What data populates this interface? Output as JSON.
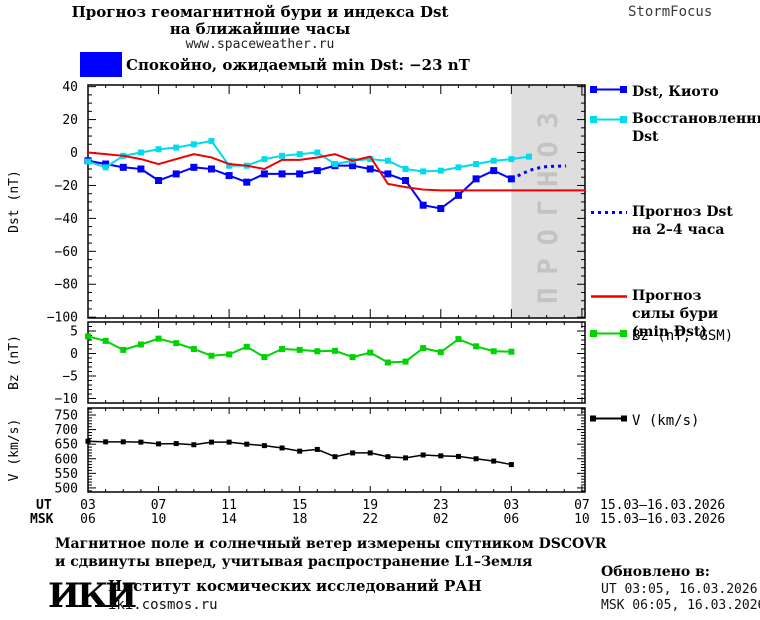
{
  "header": {
    "title_line1": "Прогноз геомагнитной бури и индекса Dst",
    "title_line2": "на ближайшие часы",
    "site": "www.spaceweather.ru",
    "brand": "StormFocus"
  },
  "status_banner": {
    "swatch_color": "#0000ff",
    "text": "Спокойно, ожидаемый min Dst: −23 nT"
  },
  "forecast_band_label": "ПРОГНОЗ",
  "legend": {
    "main": [
      {
        "lines": [
          "Dst, Киото"
        ]
      },
      {
        "lines": [
          "Восстановленный",
          "Dst"
        ]
      },
      {
        "lines": [
          "Прогноз Dst",
          "на 2–4 часа"
        ]
      },
      {
        "lines": [
          "Прогноз",
          "силы бури",
          "(min Dst)"
        ]
      }
    ],
    "bz": {
      "lines": [
        "Bz (nT, GSM)"
      ]
    },
    "v": {
      "lines": [
        "V (km/s)"
      ]
    }
  },
  "xaxis": {
    "ut_label": "UT",
    "msk_label": "MSK",
    "tick_hours": [
      0,
      4,
      8,
      12,
      16,
      20,
      24,
      28
    ],
    "ut_ticks": [
      "03",
      "07",
      "11",
      "15",
      "19",
      "23",
      "03",
      "07"
    ],
    "msk_ticks": [
      "06",
      "10",
      "14",
      "18",
      "22",
      "02",
      "06",
      "10"
    ],
    "minor_step_hours": 1,
    "x_max_hours": 28.2,
    "date_range": "15.03–16.03.2026"
  },
  "chart_data": [
    {
      "id": "dst",
      "type": "line",
      "ylabel": "Dst (nT)",
      "ylim": [
        -100.5,
        41
      ],
      "yticks": [
        40,
        20,
        0,
        -20,
        -40,
        -60,
        -80,
        -100
      ],
      "ytick_minor_step": 5,
      "grid": false,
      "forecast_band": {
        "x_start_hours": 24,
        "color": "#dedede",
        "text_color": "#c3c3c3"
      },
      "series": [
        {
          "name": "Dst, Киото",
          "color": "#0000ff",
          "marker": true,
          "marker_size": 7,
          "width": 2,
          "x": [
            0,
            1,
            2,
            3,
            4,
            5,
            6,
            7,
            8,
            9,
            10,
            11,
            12,
            13,
            14,
            15,
            16,
            17,
            18,
            19,
            20,
            21,
            22,
            23,
            24
          ],
          "values": [
            -5,
            -7,
            -9,
            -10,
            -17,
            -13,
            -9,
            -10,
            -14,
            -18,
            -13,
            -13,
            -13,
            -11,
            -8,
            -8,
            -10,
            -13,
            -17,
            -32,
            -34,
            -26,
            -16,
            -11,
            -16
          ]
        },
        {
          "name": "Восстановленный Dst",
          "color": "#00dcec",
          "marker": true,
          "marker_size": 6,
          "width": 2,
          "x": [
            0,
            1,
            2,
            3,
            4,
            5,
            6,
            7,
            8,
            9,
            10,
            11,
            12,
            13,
            14,
            15,
            16,
            17,
            18,
            19,
            20,
            21,
            22,
            23,
            24,
            25
          ],
          "values": [
            -5.5,
            -9,
            -2,
            0,
            2,
            3,
            5,
            7,
            -8,
            -8,
            -4,
            -2,
            -1,
            0,
            -7,
            -5,
            -4,
            -5,
            -10,
            -11.5,
            -11,
            -9,
            -7,
            -5,
            -4,
            -2.5
          ]
        },
        {
          "name": "Прогноз Dst на 2–4 часа",
          "color": "#0000ff",
          "dotted": true,
          "width": 3,
          "x": [
            24,
            24.4,
            24.8,
            25.2,
            25.6,
            26,
            26.5,
            27.1
          ],
          "values": [
            -16,
            -14,
            -12,
            -10.3,
            -9.2,
            -8.6,
            -8.3,
            -8.2
          ]
        },
        {
          "name": "Прогноз силы бури (min Dst)",
          "color": "#ee0000",
          "width": 2,
          "x": [
            0,
            1,
            2,
            3,
            4,
            5,
            6,
            7,
            8,
            9,
            10,
            11,
            12,
            13,
            14,
            15,
            16,
            17,
            18,
            19,
            20,
            24,
            28.2
          ],
          "values": [
            0,
            -1,
            -2,
            -4,
            -7,
            -4,
            -1,
            -3,
            -7,
            -8,
            -10,
            -4.5,
            -4.5,
            -3,
            -1,
            -5,
            -2.5,
            -19,
            -21,
            -22.5,
            -23,
            -23,
            -23
          ]
        }
      ]
    },
    {
      "id": "bz",
      "type": "line",
      "ylabel": "Bz (nT)",
      "ylim": [
        -11,
        7
      ],
      "yticks": [
        5,
        0,
        -5,
        -10
      ],
      "ytick_minor_step": 1,
      "grid": false,
      "series": [
        {
          "name": "Bz (nT, GSM)",
          "color": "#00d400",
          "marker": true,
          "marker_size": 6,
          "width": 2,
          "x": [
            0,
            1,
            2,
            3,
            4,
            5,
            6,
            7,
            8,
            9,
            10,
            11,
            12,
            13,
            14,
            15,
            16,
            17,
            18,
            19,
            20,
            21,
            22,
            23,
            24
          ],
          "values": [
            3.8,
            2.8,
            0.8,
            2,
            3.3,
            2.3,
            1,
            -0.5,
            -0.2,
            1.5,
            -0.8,
            1,
            0.8,
            0.5,
            0.6,
            -0.8,
            0.2,
            -2,
            -1.8,
            1.2,
            0.3,
            3.2,
            1.6,
            0.5,
            0.4
          ]
        }
      ]
    },
    {
      "id": "v",
      "type": "line",
      "ylabel": "V (km/s)",
      "ylim": [
        486,
        774
      ],
      "yticks": [
        750,
        700,
        650,
        600,
        550,
        500
      ],
      "ytick_minor_step": 10,
      "grid": false,
      "series": [
        {
          "name": "V (km/s)",
          "color": "#000000",
          "marker": true,
          "marker_size": 5,
          "width": 1.5,
          "x": [
            0,
            1,
            2,
            3,
            4,
            5,
            6,
            7,
            8,
            9,
            10,
            11,
            12,
            13,
            14,
            15,
            16,
            17,
            18,
            19,
            20,
            21,
            22,
            23,
            24
          ],
          "values": [
            660,
            658,
            658,
            657,
            651,
            652,
            648,
            657,
            657,
            650,
            645,
            637,
            626,
            632,
            607,
            620,
            620,
            607,
            603,
            613,
            610,
            608,
            600,
            592,
            580
          ]
        }
      ]
    }
  ],
  "footnote": {
    "line1": "Магнитное поле и солнечный ветер измерены спутником DSCOVR",
    "line2": "и сдвинуты вперед, учитывая распространение L1–Земля"
  },
  "org": {
    "logo": "ИКИ",
    "name": "Институт космических исследований РАН",
    "site": "iki.cosmos.ru"
  },
  "updated": {
    "label": "Обновлено в:",
    "ut": "UT  03:05, 16.03.2026",
    "msk": "MSK 06:05, 16.03.2026"
  }
}
